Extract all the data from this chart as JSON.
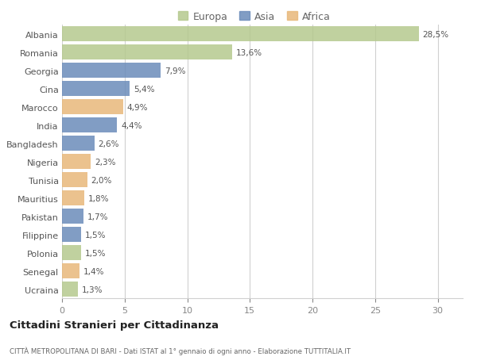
{
  "countries": [
    "Albania",
    "Romania",
    "Georgia",
    "Cina",
    "Marocco",
    "India",
    "Bangladesh",
    "Nigeria",
    "Tunisia",
    "Mauritius",
    "Pakistan",
    "Filippine",
    "Polonia",
    "Senegal",
    "Ucraina"
  ],
  "values": [
    28.5,
    13.6,
    7.9,
    5.4,
    4.9,
    4.4,
    2.6,
    2.3,
    2.0,
    1.8,
    1.7,
    1.5,
    1.5,
    1.4,
    1.3
  ],
  "labels": [
    "28,5%",
    "13,6%",
    "7,9%",
    "5,4%",
    "4,9%",
    "4,4%",
    "2,6%",
    "2,3%",
    "2,0%",
    "1,8%",
    "1,7%",
    "1,5%",
    "1,5%",
    "1,4%",
    "1,3%"
  ],
  "continents": [
    "Europa",
    "Europa",
    "Asia",
    "Asia",
    "Africa",
    "Asia",
    "Asia",
    "Africa",
    "Africa",
    "Africa",
    "Asia",
    "Asia",
    "Europa",
    "Africa",
    "Europa"
  ],
  "colors": {
    "Europa": "#b5c98e",
    "Asia": "#6b8cba",
    "Africa": "#e8b87a"
  },
  "xlim": [
    0,
    32
  ],
  "xticks": [
    0,
    5,
    10,
    15,
    20,
    25,
    30
  ],
  "title": "Cittadini Stranieri per Cittadinanza",
  "subtitle": "CITTÀ METROPOLITANA DI BARI - Dati ISTAT al 1° gennaio di ogni anno - Elaborazione TUTTITALIA.IT",
  "background_color": "#ffffff",
  "grid_color": "#d0d0d0",
  "bar_height": 0.82
}
